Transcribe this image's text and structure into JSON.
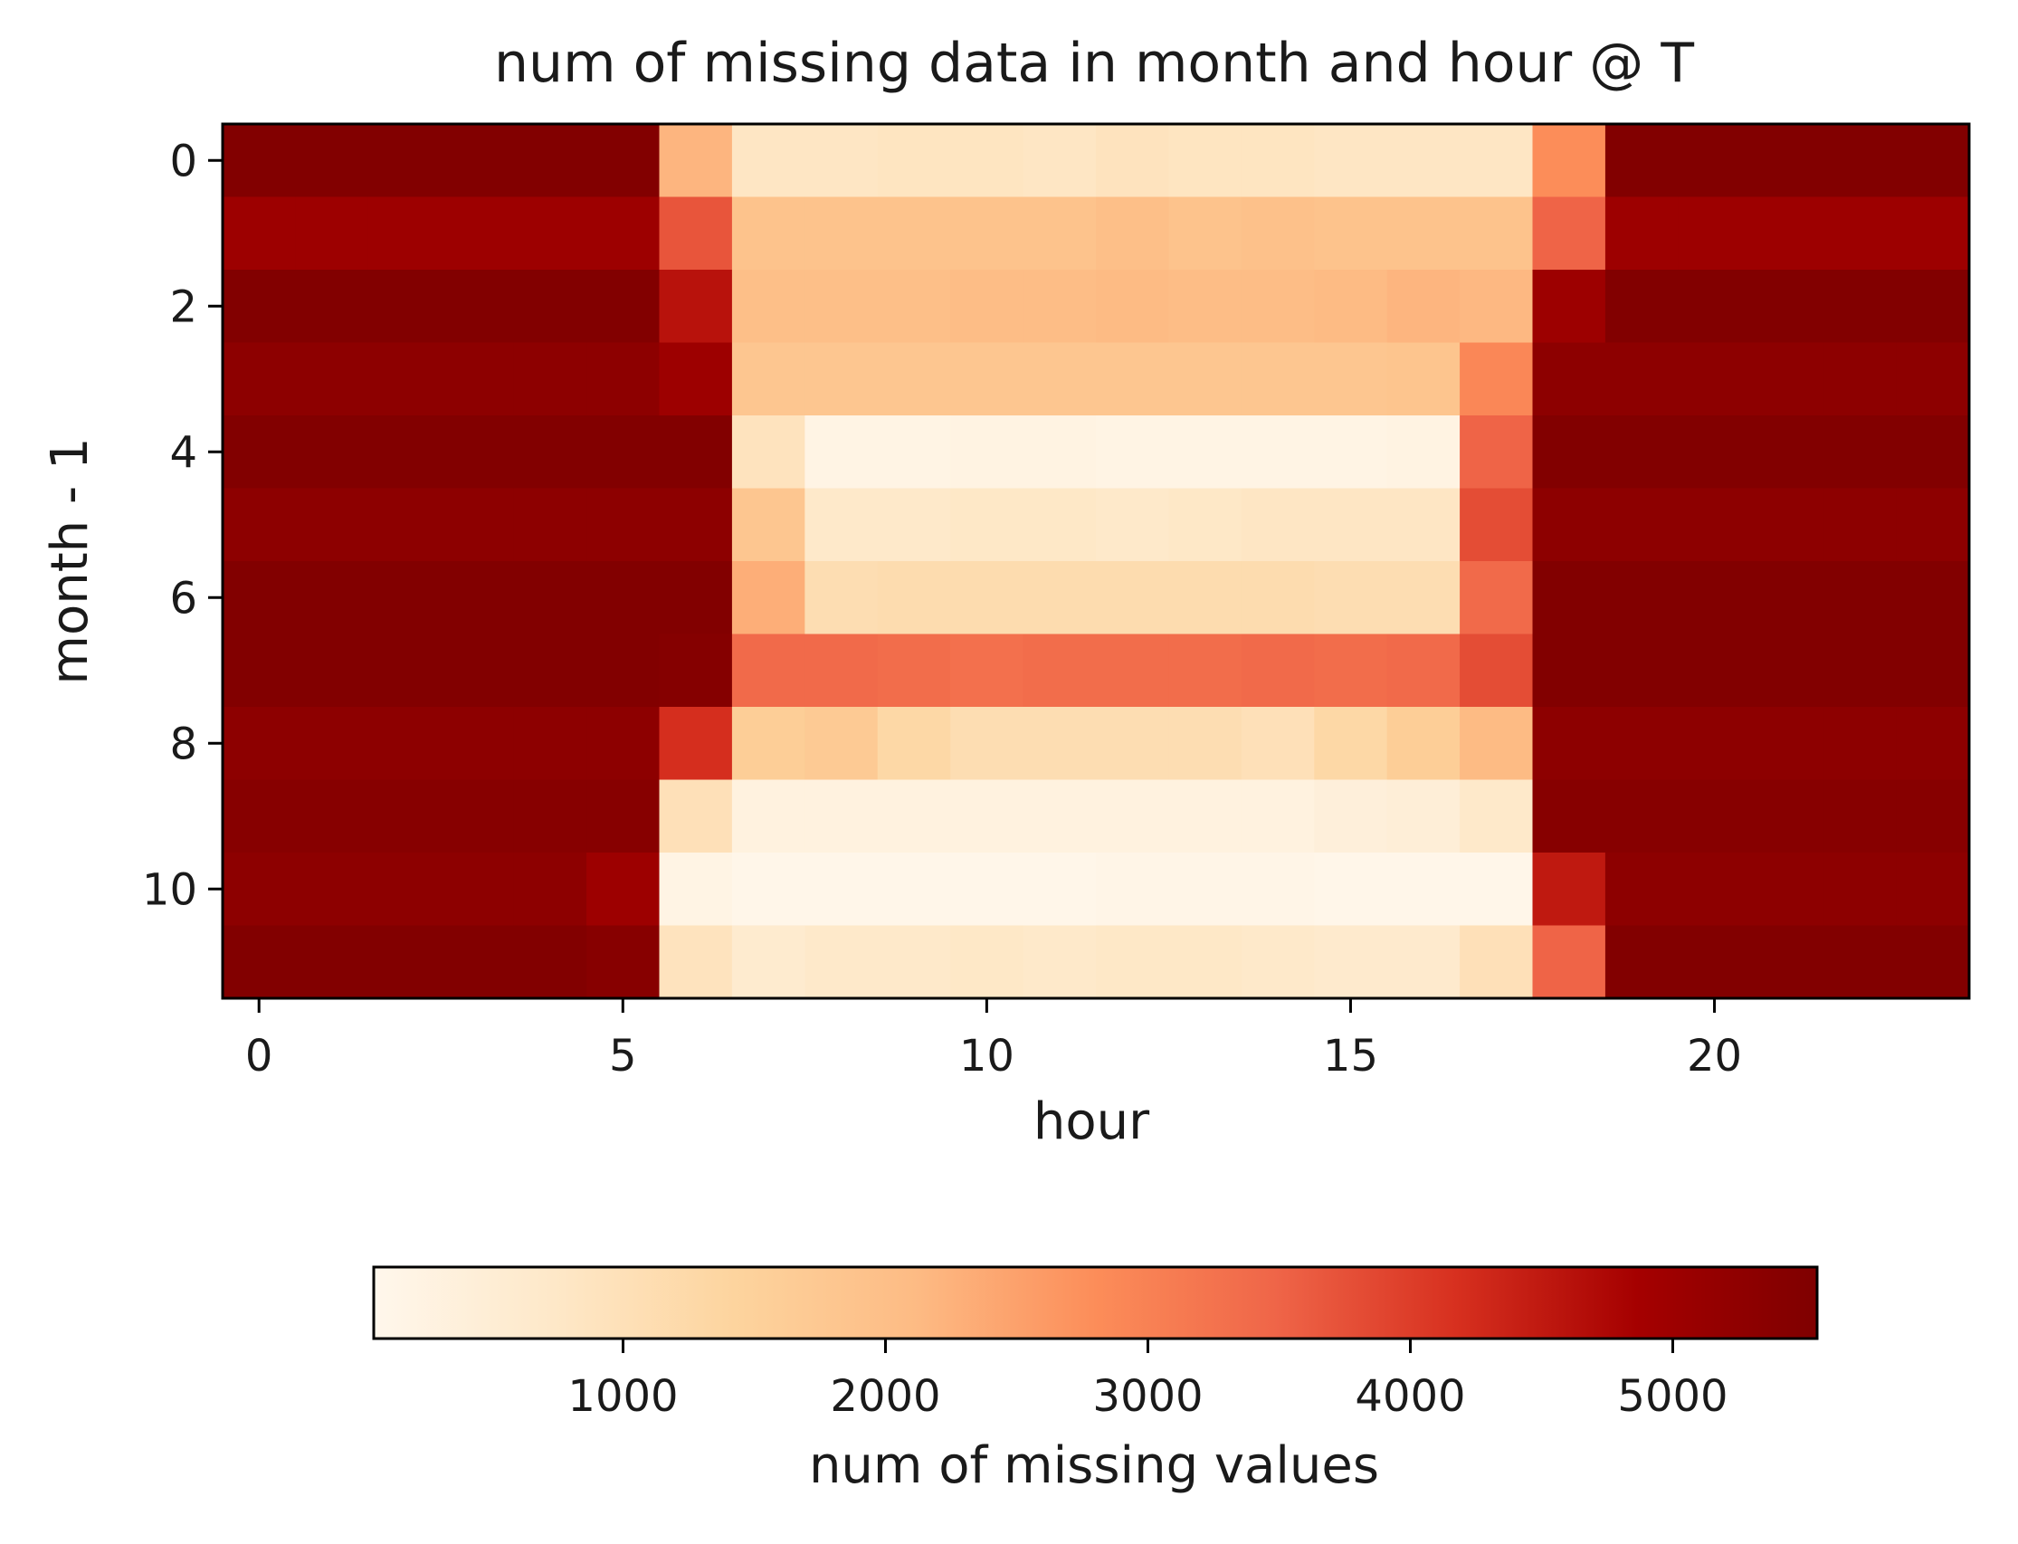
{
  "chart_data": {
    "type": "heatmap",
    "title": "num of missing data in month and hour @ T",
    "xlabel": "hour",
    "ylabel": "month - 1",
    "x_ticks": [
      "0",
      "5",
      "10",
      "15",
      "20"
    ],
    "y_ticks": [
      "0",
      "2",
      "4",
      "6",
      "8",
      "10"
    ],
    "x": [
      0,
      1,
      2,
      3,
      4,
      5,
      6,
      7,
      8,
      9,
      10,
      11,
      12,
      13,
      14,
      15,
      16,
      17,
      18,
      19,
      20,
      21,
      22,
      23
    ],
    "y": [
      0,
      1,
      2,
      3,
      4,
      5,
      6,
      7,
      8,
      9,
      10,
      11
    ],
    "xlim": [
      -0.5,
      23.5
    ],
    "ylim": [
      -0.5,
      11.5
    ],
    "colormap": "OrRd",
    "colorbar": {
      "label": "num of missing values",
      "orientation": "horizontal",
      "vmin": 50,
      "vmax": 5550,
      "ticks": [
        "1000",
        "2000",
        "3000",
        "4000",
        "5000"
      ],
      "tick_values": [
        1000,
        2000,
        3000,
        4000,
        5000
      ]
    },
    "values": [
      [
        5500,
        5500,
        5500,
        5500,
        5500,
        5500,
        2200,
        800,
        800,
        850,
        850,
        800,
        900,
        850,
        850,
        800,
        800,
        800,
        2800,
        5500,
        5500,
        5500,
        5500,
        5500
      ],
      [
        5000,
        5000,
        5000,
        5000,
        5000,
        5000,
        3700,
        1900,
        1900,
        1900,
        1900,
        1900,
        2000,
        1900,
        1950,
        1900,
        1900,
        1900,
        3500,
        5000,
        5000,
        5000,
        5000,
        5000
      ],
      [
        5500,
        5500,
        5500,
        5500,
        5500,
        5500,
        4600,
        2000,
        2000,
        2000,
        2050,
        2050,
        2100,
        2050,
        2050,
        2100,
        2200,
        2150,
        5000,
        5500,
        5500,
        5500,
        5500,
        5500
      ],
      [
        5300,
        5300,
        5300,
        5300,
        5300,
        5300,
        5000,
        1800,
        1800,
        1800,
        1800,
        1800,
        1800,
        1800,
        1800,
        1800,
        1850,
        2900,
        5300,
        5300,
        5300,
        5300,
        5300,
        5300
      ],
      [
        5500,
        5500,
        5500,
        5500,
        5500,
        5500,
        5500,
        900,
        200,
        200,
        250,
        250,
        200,
        200,
        200,
        200,
        250,
        3500,
        5500,
        5500,
        5500,
        5500,
        5500,
        5500
      ],
      [
        5300,
        5300,
        5300,
        5300,
        5300,
        5300,
        5300,
        1800,
        700,
        700,
        750,
        750,
        700,
        750,
        800,
        800,
        800,
        3800,
        5300,
        5300,
        5300,
        5300,
        5300,
        5300
      ],
      [
        5500,
        5500,
        5500,
        5500,
        5500,
        5500,
        5500,
        2300,
        1100,
        1150,
        1150,
        1150,
        1150,
        1150,
        1150,
        1100,
        1100,
        3400,
        5500,
        5500,
        5500,
        5500,
        5500,
        5500
      ],
      [
        5500,
        5500,
        5500,
        5500,
        5500,
        5500,
        5450,
        3400,
        3400,
        3350,
        3300,
        3350,
        3350,
        3350,
        3400,
        3350,
        3400,
        3800,
        5500,
        5500,
        5500,
        5500,
        5500,
        5500
      ],
      [
        5300,
        5300,
        5300,
        5300,
        5300,
        5300,
        4200,
        1600,
        1700,
        1300,
        1100,
        1100,
        1100,
        1100,
        1000,
        1300,
        1600,
        2100,
        5300,
        5300,
        5300,
        5300,
        5300,
        5300
      ],
      [
        5400,
        5400,
        5400,
        5400,
        5400,
        5400,
        1000,
        300,
        300,
        300,
        300,
        300,
        300,
        300,
        300,
        400,
        450,
        700,
        5400,
        5400,
        5400,
        5400,
        5400,
        5400
      ],
      [
        5300,
        5300,
        5300,
        5300,
        5300,
        5000,
        200,
        100,
        100,
        100,
        100,
        100,
        150,
        150,
        150,
        100,
        100,
        100,
        4500,
        5300,
        5300,
        5300,
        5300,
        5300
      ],
      [
        5500,
        5500,
        5500,
        5500,
        5500,
        5400,
        900,
        600,
        700,
        700,
        750,
        700,
        750,
        750,
        700,
        650,
        650,
        1000,
        3500,
        5500,
        5500,
        5500,
        5500,
        5500
      ]
    ]
  }
}
